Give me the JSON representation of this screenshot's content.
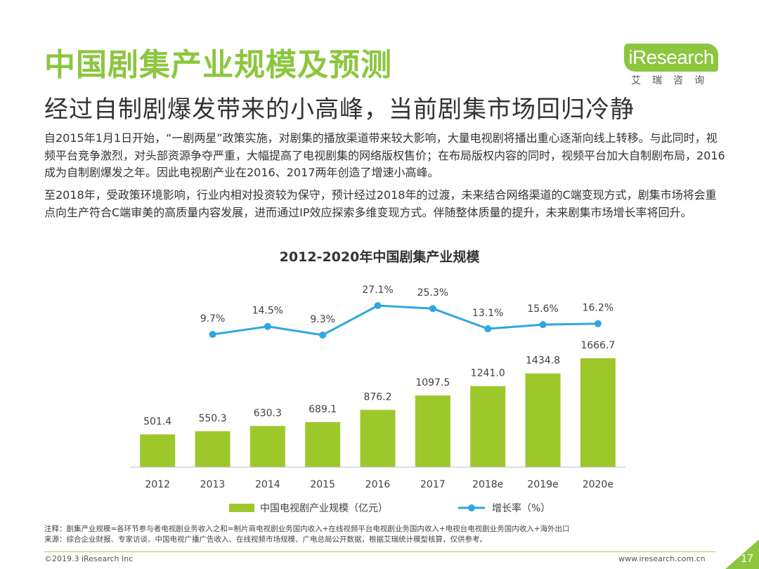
{
  "header": {
    "title": "中国剧集产业规模及预测",
    "subtitle": "经过自制剧爆发带来的小高峰，当前剧集市场回归冷静"
  },
  "logo": {
    "brand": "iResearch",
    "tagline": "艾瑞咨询"
  },
  "body": {
    "paragraph1": "自2015年1月1日开始，“一剧两星”政策实施，对剧集的播放渠道带来较大影响，大量电视剧将播出重心逐渐向线上转移。与此同时，视频平台竞争激烈，对头部资源争夺严重，大幅提高了电视剧集的网络版权售价；在布局版权内容的同时，视频平台加大自制剧布局，2016成为自制剧爆发之年。因此电视剧产业在2016、2017两年创造了增速小高峰。",
    "paragraph2": "至2018年，受政策环境影响，行业内相对投资较为保守，预计经过2018年的过渡，未来结合网络渠道的C端变现方式，剧集市场将会重点向生产符合C端审美的高质量内容发展，进而通过IP效应探索多维变现方式。伴随整体质量的提升，未来剧集市场增长率将回升。"
  },
  "chart_data": {
    "type": "bar",
    "title": "2012-2020年中国剧集产业规模",
    "categories": [
      "2012",
      "2013",
      "2014",
      "2015",
      "2016",
      "2017",
      "2018e",
      "2019e",
      "2020e"
    ],
    "series": [
      {
        "name": "中国电视剧产业规模（亿元）",
        "type": "bar",
        "values": [
          501.4,
          550.3,
          630.3,
          689.1,
          876.2,
          1097.5,
          1241.0,
          1434.8,
          1666.7
        ],
        "labels": [
          "501.4",
          "550.3",
          "630.3",
          "689.1",
          "876.2",
          "1097.5",
          "1241.0",
          "1434.8",
          "1666.7"
        ]
      },
      {
        "name": "增长率（%）",
        "type": "line",
        "values": [
          null,
          9.7,
          14.5,
          9.3,
          27.1,
          25.3,
          13.1,
          15.6,
          16.2
        ],
        "labels": [
          "",
          "9.7%",
          "14.5%",
          "9.3%",
          "27.1%",
          "25.3%",
          "13.1%",
          "15.6%",
          "16.2%"
        ]
      }
    ],
    "legend_position": "bottom",
    "grid": false,
    "colors": {
      "bar": "#9dc82c",
      "line": "#2ea7e0",
      "axis": "#bfbfbf"
    }
  },
  "notes": {
    "note": "注释：剧集产业规模=各环节参与者电视剧业务收入之和=制片商电视剧业务国内收入+在线视频平台电视剧业务国内收入+电视台电视剧业务国内收入+海外出口",
    "source": "来源：综合企业财报、专家访谈、中国电视广播广告收入、在线视频市场规模、广电总局公开数据，根据艾瑞统计模型核算，仅供参考。"
  },
  "footer": {
    "copyright": "©2019.3 iResearch Inc",
    "website": "www.iresearch.com.cn",
    "page_number": "17"
  }
}
